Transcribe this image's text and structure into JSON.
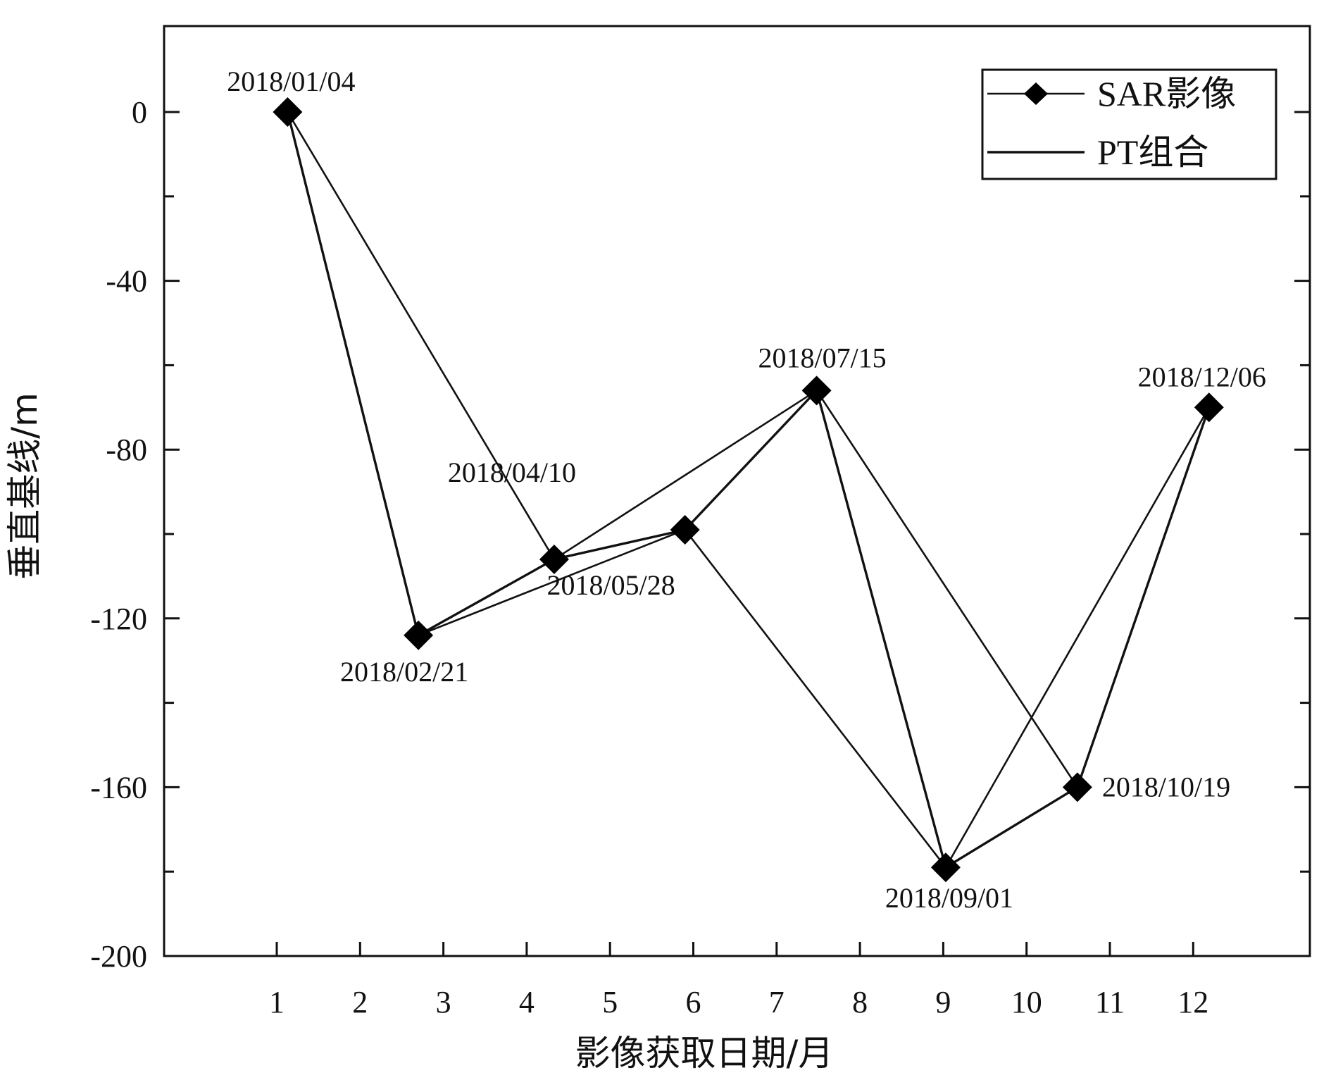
{
  "chart_data": {
    "type": "line",
    "xlabel": "影像获取日期/月",
    "ylabel": "垂直基线/m",
    "xlim": [
      0,
      13.5
    ],
    "ylim": [
      -200,
      20
    ],
    "x_ticks": [
      1,
      2,
      3,
      4,
      5,
      6,
      7,
      8,
      9,
      10,
      11,
      12
    ],
    "y_ticks": [
      0,
      -40,
      -80,
      -120,
      -160,
      -200
    ],
    "legend_position": "top-right",
    "legend": [
      {
        "label": "SAR影像",
        "kind": "marker"
      },
      {
        "label": "PT组合",
        "kind": "line"
      }
    ],
    "sar_images": [
      {
        "date": "2018/01/04",
        "month": 1.13,
        "baseline": 0
      },
      {
        "date": "2018/02/21",
        "month": 2.7,
        "baseline": -124
      },
      {
        "date": "2018/04/10",
        "month": 4.33,
        "baseline": -106
      },
      {
        "date": "2018/05/28",
        "month": 5.9,
        "baseline": -99
      },
      {
        "date": "2018/07/15",
        "month": 7.48,
        "baseline": -66
      },
      {
        "date": "2018/09/01",
        "month": 9.03,
        "baseline": -179
      },
      {
        "date": "2018/10/19",
        "month": 10.61,
        "baseline": -160
      },
      {
        "date": "2018/12/06",
        "month": 12.19,
        "baseline": -70
      }
    ],
    "pt_pairs": [
      [
        0,
        1
      ],
      [
        0,
        2
      ],
      [
        1,
        2
      ],
      [
        1,
        3
      ],
      [
        2,
        3
      ],
      [
        2,
        4
      ],
      [
        3,
        4
      ],
      [
        3,
        5
      ],
      [
        4,
        5
      ],
      [
        4,
        6
      ],
      [
        5,
        6
      ],
      [
        5,
        7
      ],
      [
        6,
        7
      ]
    ]
  }
}
